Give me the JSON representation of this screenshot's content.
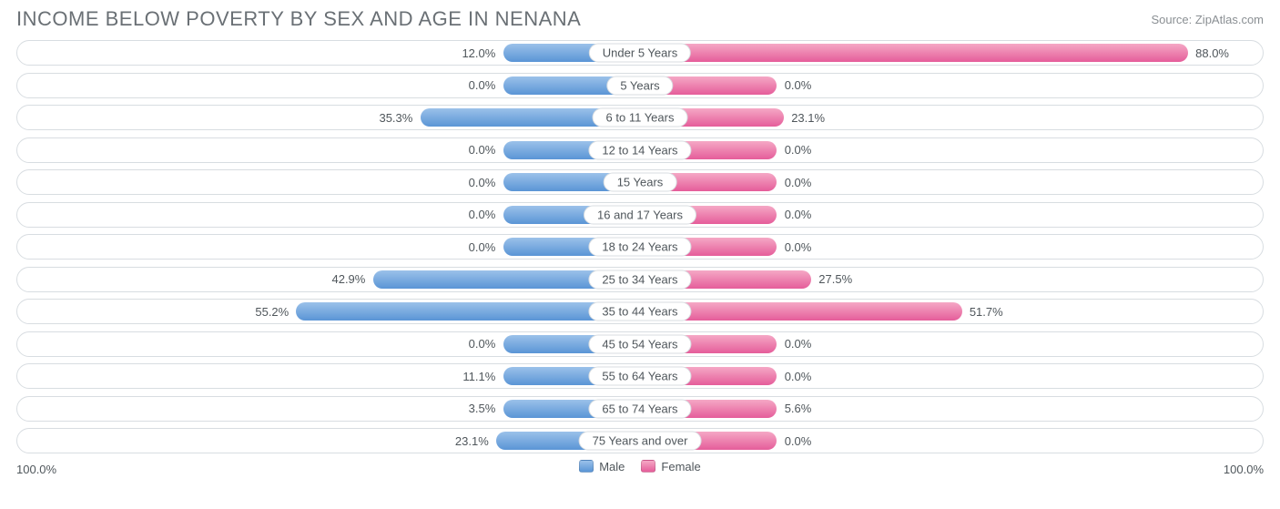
{
  "header": {
    "title": "INCOME BELOW POVERTY BY SEX AND AGE IN NENANA",
    "source": "Source: ZipAtlas.com"
  },
  "chart": {
    "type": "diverging-bar",
    "axis_max_pct": 100.0,
    "min_bar_pct": 22.0,
    "label_gap_pct": 1.2,
    "colors": {
      "male_top": "#9bc1ea",
      "male_bottom": "#5a95d6",
      "female_top": "#f5a8c5",
      "female_bottom": "#e55d9a",
      "row_border": "#d8dde1",
      "row_bg": "#ffffff",
      "text": "#4f565b",
      "title_text": "#6a7075",
      "source_text": "#8a8f93"
    },
    "rows": [
      {
        "age": "Under 5 Years",
        "male": 12.0,
        "female": 88.0,
        "male_label": "12.0%",
        "female_label": "88.0%"
      },
      {
        "age": "5 Years",
        "male": 0.0,
        "female": 0.0,
        "male_label": "0.0%",
        "female_label": "0.0%"
      },
      {
        "age": "6 to 11 Years",
        "male": 35.3,
        "female": 23.1,
        "male_label": "35.3%",
        "female_label": "23.1%"
      },
      {
        "age": "12 to 14 Years",
        "male": 0.0,
        "female": 0.0,
        "male_label": "0.0%",
        "female_label": "0.0%"
      },
      {
        "age": "15 Years",
        "male": 0.0,
        "female": 0.0,
        "male_label": "0.0%",
        "female_label": "0.0%"
      },
      {
        "age": "16 and 17 Years",
        "male": 0.0,
        "female": 0.0,
        "male_label": "0.0%",
        "female_label": "0.0%"
      },
      {
        "age": "18 to 24 Years",
        "male": 0.0,
        "female": 0.0,
        "male_label": "0.0%",
        "female_label": "0.0%"
      },
      {
        "age": "25 to 34 Years",
        "male": 42.9,
        "female": 27.5,
        "male_label": "42.9%",
        "female_label": "27.5%"
      },
      {
        "age": "35 to 44 Years",
        "male": 55.2,
        "female": 51.7,
        "male_label": "55.2%",
        "female_label": "51.7%"
      },
      {
        "age": "45 to 54 Years",
        "male": 0.0,
        "female": 0.0,
        "male_label": "0.0%",
        "female_label": "0.0%"
      },
      {
        "age": "55 to 64 Years",
        "male": 11.1,
        "female": 0.0,
        "male_label": "11.1%",
        "female_label": "0.0%"
      },
      {
        "age": "65 to 74 Years",
        "male": 3.5,
        "female": 5.6,
        "male_label": "3.5%",
        "female_label": "5.6%"
      },
      {
        "age": "75 Years and over",
        "male": 23.1,
        "female": 0.0,
        "male_label": "23.1%",
        "female_label": "0.0%"
      }
    ],
    "axis_labels": {
      "left": "100.0%",
      "right": "100.0%"
    },
    "legend": {
      "male": "Male",
      "female": "Female"
    }
  }
}
